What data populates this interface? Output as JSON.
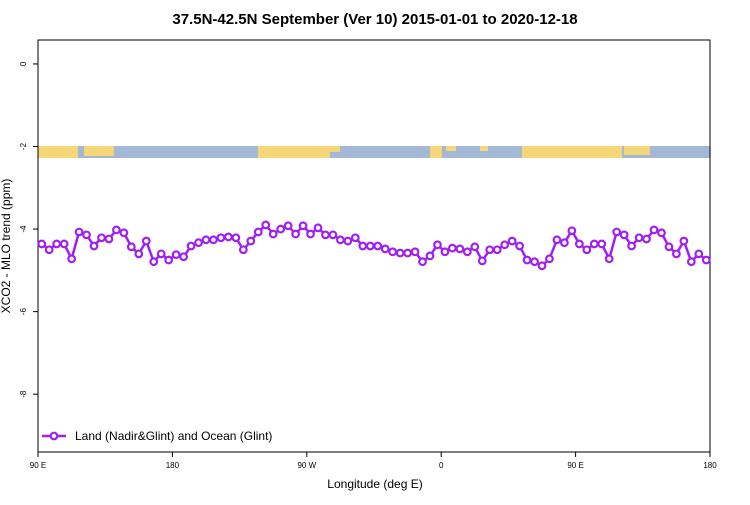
{
  "chart_data": {
    "type": "line",
    "title": "37.5N-42.5N September (Ver 10)   2015-01-01 to 2020-12-18",
    "x_label": "Longitude (deg E)",
    "y_label": "XCO2 - MLO trend (ppm)",
    "xlim": [
      90,
      540
    ],
    "ylim": [
      -9.4,
      0.58
    ],
    "xticks": [
      {
        "value": 90,
        "label": "90 E"
      },
      180,
      {
        "value": 270,
        "label": "90 W"
      },
      {
        "value": 360,
        "label": "0"
      },
      {
        "value": 450,
        "label": "90 E"
      },
      {
        "value": 540,
        "label": "180"
      }
    ],
    "yticks": [
      0,
      -2,
      -4,
      -6,
      -8
    ],
    "legend_position": "bottom-left",
    "x": [
      92.5,
      97.5,
      102.5,
      107.5,
      112.5,
      117.5,
      122.5,
      127.5,
      132.5,
      137.5,
      142.5,
      147.5,
      152.5,
      157.5,
      162.5,
      167.5,
      172.5,
      177.5,
      182.5,
      187.5,
      192.5,
      197.5,
      202.5,
      207.5,
      212.5,
      217.5,
      222.5,
      227.5,
      232.5,
      237.5,
      242.5,
      247.5,
      252.5,
      257.5,
      262.5,
      267.5,
      272.5,
      277.5,
      282.5,
      287.5,
      292.5,
      297.5,
      302.5,
      307.5,
      312.5,
      317.5,
      322.5,
      327.5,
      332.5,
      337.5,
      342.5,
      347.5,
      352.5,
      357.5,
      362.5,
      367.5,
      372.5,
      377.5,
      382.5,
      387.5,
      392.5,
      397.5,
      402.5,
      407.5,
      412.5,
      417.5,
      422.5,
      427.5,
      432.5,
      437.5,
      442.5,
      447.5,
      452.5,
      457.5,
      462.5,
      467.5,
      472.5,
      477.5,
      482.5,
      487.5,
      492.5,
      497.5,
      502.5,
      507.5,
      512.5,
      517.5,
      522.5,
      527.5,
      532.5,
      537.5
    ],
    "series": [
      {
        "name": "Land (Nadir&Glint) and Ocean (Glint)",
        "color": "#a020f0",
        "values": [
          -4.36,
          -4.5,
          -4.36,
          -4.36,
          -4.72,
          -4.07,
          -4.14,
          -4.41,
          -4.21,
          -4.24,
          -4.02,
          -4.09,
          -4.43,
          -4.6,
          -4.29,
          -4.79,
          -4.6,
          -4.75,
          -4.62,
          -4.67,
          -4.41,
          -4.33,
          -4.26,
          -4.26,
          -4.21,
          -4.19,
          -4.21,
          -4.5,
          -4.29,
          -4.07,
          -3.9,
          -4.12,
          -4.0,
          -3.92,
          -4.12,
          -3.92,
          -4.12,
          -3.97,
          -4.14,
          -4.14,
          -4.26,
          -4.29,
          -4.21,
          -4.41,
          -4.41,
          -4.41,
          -4.48,
          -4.55,
          -4.58,
          -4.58,
          -4.55,
          -4.79,
          -4.65,
          -4.38,
          -4.55,
          -4.46,
          -4.48,
          -4.55,
          -4.43,
          -4.77,
          -4.5,
          -4.5,
          -4.38,
          -4.29,
          -4.41,
          -4.75,
          -4.79,
          -4.89,
          -4.72,
          -4.26,
          -4.33,
          -4.04,
          -4.36,
          -4.5,
          -4.36,
          -4.36,
          -4.72,
          -4.07,
          -4.14,
          -4.41,
          -4.21,
          -4.24,
          -4.02,
          -4.09,
          -4.43,
          -4.6,
          -4.29,
          -4.79,
          -4.6,
          -4.75
        ]
      }
    ]
  }
}
